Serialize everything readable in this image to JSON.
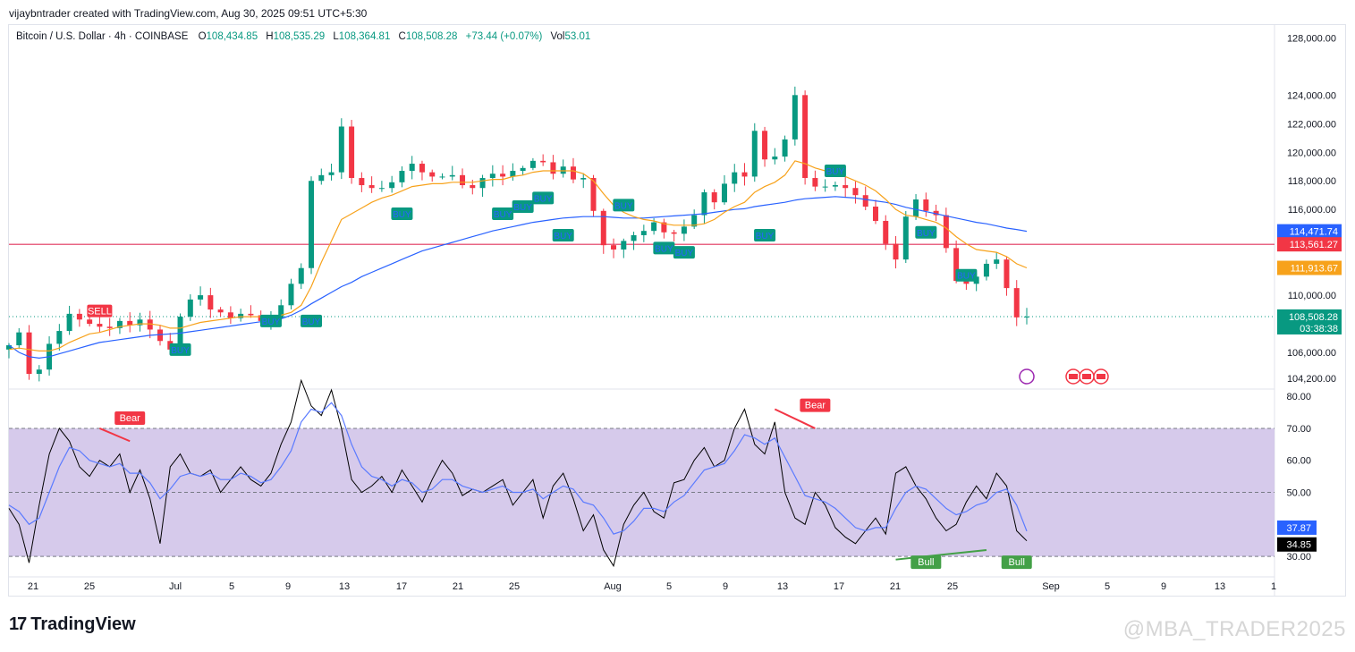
{
  "header": {
    "attribution": "vijaybntrader created with TradingView.com, Aug 30, 2025 09:51 UTC+5:30"
  },
  "legend": {
    "symbol": "Bitcoin / U.S. Dollar · 4h · COINBASE",
    "open_label": "O",
    "open": "108,434.85",
    "high_label": "H",
    "high": "108,535.29",
    "low_label": "L",
    "low": "108,364.81",
    "close_label": "C",
    "close": "108,508.28",
    "change": "+73.44 (+0.07%)",
    "vol_label": "Vol",
    "vol": "53.01"
  },
  "footer": {
    "logo_text": "TradingView",
    "watermark": "@MBA_TRADER2025"
  },
  "colors": {
    "up": "#089981",
    "down": "#f23645",
    "ma_slow": "#2962ff",
    "ma_fast": "#f7a21b",
    "hline": "#e0345c",
    "rsi_band": "#d1c4e9",
    "rsi_line": "#000000",
    "rsi_ma": "#5b7bff"
  },
  "chart_data": [
    {
      "type": "candlestick",
      "x_ticks": [
        "21",
        "25",
        "Jul",
        "5",
        "9",
        "13",
        "17",
        "21",
        "25",
        "Aug",
        "5",
        "9",
        "13",
        "17",
        "21",
        "25",
        "Sep",
        "5",
        "9",
        "13",
        "1"
      ],
      "y_ticks": [
        "128,000.00",
        "124,000.00",
        "122,000.00",
        "120,000.00",
        "118,000.00",
        "116,000.00",
        "110,000.00",
        "106,000.00",
        "104,200.00"
      ],
      "y_tick_values": [
        128000,
        124000,
        122000,
        120000,
        118000,
        116000,
        110000,
        106000,
        104200
      ],
      "ylim": [
        103500,
        128900
      ],
      "price_series": [
        106500,
        107400,
        104500,
        104800,
        106600,
        107500,
        108700,
        108300,
        108000,
        107800,
        107700,
        108200,
        107900,
        108300,
        107600,
        106800,
        106200,
        108500,
        109700,
        110000,
        109000,
        108800,
        108400,
        108700,
        108600,
        108200,
        108400,
        109300,
        110800,
        111900,
        118000,
        118400,
        118600,
        121800,
        118200,
        117700,
        117500,
        117500,
        117900,
        118700,
        119200,
        118600,
        118300,
        118300,
        118400,
        117700,
        117500,
        118200,
        118500,
        118300,
        118700,
        118900,
        119400,
        119300,
        118500,
        119000,
        118100,
        118200,
        115900,
        113500,
        113200,
        113800,
        114200,
        114500,
        115100,
        114400,
        114300,
        114800,
        115600,
        117200,
        116500,
        117800,
        118600,
        118300,
        121500,
        119500,
        119700,
        120900,
        124000,
        118200,
        117600,
        117600,
        117700,
        117500,
        117000,
        116200,
        115200,
        113600,
        112500,
        115500,
        116700,
        115900,
        115600,
        113300,
        111000,
        110800,
        111300,
        112200,
        112500,
        110500,
        108450,
        108508
      ],
      "ma_fast": [
        106200,
        106300,
        106200,
        106100,
        106100,
        106300,
        106700,
        107000,
        107300,
        107400,
        107600,
        107800,
        107900,
        108000,
        108000,
        107900,
        107700,
        107700,
        107900,
        108100,
        108200,
        108300,
        108400,
        108500,
        108500,
        108500,
        108500,
        108600,
        108800,
        109300,
        110600,
        112300,
        113800,
        115300,
        115700,
        116100,
        116500,
        116800,
        117000,
        117300,
        117600,
        117700,
        117800,
        117800,
        117900,
        117900,
        117900,
        118000,
        118100,
        118100,
        118300,
        118400,
        118600,
        118700,
        118700,
        118700,
        118700,
        118500,
        118000,
        117100,
        116300,
        115800,
        115500,
        115300,
        115200,
        115000,
        114900,
        114900,
        114900,
        115000,
        115300,
        115800,
        116200,
        116500,
        117200,
        117600,
        117900,
        118400,
        119400,
        119200,
        118900,
        118700,
        118500,
        118300,
        118000,
        117700,
        117300,
        116700,
        116000,
        115600,
        115500,
        115300,
        115100,
        114700,
        114100,
        113600,
        113200,
        113100,
        113000,
        112700,
        112200,
        111913
      ],
      "ma_slow": [
        106500,
        106000,
        105700,
        105600,
        105700,
        105900,
        106100,
        106300,
        106500,
        106700,
        106800,
        106900,
        107000,
        107100,
        107200,
        107250,
        107300,
        107350,
        107450,
        107550,
        107650,
        107750,
        107850,
        107950,
        108050,
        108150,
        108250,
        108350,
        108600,
        108950,
        109400,
        109800,
        110200,
        110600,
        110900,
        111300,
        111600,
        111900,
        112200,
        112500,
        112800,
        113100,
        113300,
        113500,
        113700,
        113900,
        114100,
        114300,
        114500,
        114650,
        114800,
        114950,
        115100,
        115200,
        115300,
        115400,
        115450,
        115500,
        115500,
        115500,
        115450,
        115400,
        115400,
        115400,
        115450,
        115500,
        115550,
        115600,
        115650,
        115700,
        115800,
        115900,
        116000,
        116050,
        116200,
        116300,
        116400,
        116500,
        116650,
        116750,
        116800,
        116850,
        116900,
        116850,
        116800,
        116700,
        116600,
        116500,
        116350,
        116150,
        116000,
        115850,
        115700,
        115550,
        115400,
        115250,
        115100,
        115000,
        114850,
        114700,
        114600,
        114472
      ],
      "horizontal_line": 113561.27,
      "price_labels": [
        {
          "text": "114,471.74",
          "color": "#2962ff",
          "value": 114471.74
        },
        {
          "text": "113,561.27",
          "color": "#f23645",
          "value": 113561.27
        },
        {
          "text": "111,913.67",
          "color": "#f7a21b",
          "value": 111913.67
        },
        {
          "text": "108,508.28",
          "sub": "03:38:38",
          "color": "#089981",
          "value": 108508.28
        }
      ],
      "signals": [
        {
          "label": "SELL",
          "kind": "sell",
          "x_index": 9,
          "y": 108900
        },
        {
          "label": "BUY",
          "kind": "buy",
          "x_index": 17,
          "y": 106200
        },
        {
          "label": "BUY",
          "kind": "buy",
          "x_index": 26,
          "y": 108200
        },
        {
          "label": "BUY",
          "kind": "buy",
          "x_index": 30,
          "y": 108200
        },
        {
          "label": "BUY",
          "kind": "buy",
          "x_index": 39,
          "y": 115700
        },
        {
          "label": "BUY",
          "kind": "buy",
          "x_index": 49,
          "y": 115700
        },
        {
          "label": "BUY",
          "kind": "buy",
          "x_index": 51,
          "y": 116200
        },
        {
          "label": "BUY",
          "kind": "buy",
          "x_index": 53,
          "y": 116800
        },
        {
          "label": "BUY",
          "kind": "buy",
          "x_index": 55,
          "y": 114200
        },
        {
          "label": "BUY",
          "kind": "buy",
          "x_index": 61,
          "y": 116300
        },
        {
          "label": "BUY",
          "kind": "buy",
          "x_index": 65,
          "y": 113300
        },
        {
          "label": "BUY",
          "kind": "buy",
          "x_index": 67,
          "y": 113000
        },
        {
          "label": "BUY",
          "kind": "buy",
          "x_index": 75,
          "y": 114200
        },
        {
          "label": "BUY",
          "kind": "buy",
          "x_index": 82,
          "y": 118700
        },
        {
          "label": "BUY",
          "kind": "buy",
          "x_index": 91,
          "y": 114400
        },
        {
          "label": "BUY",
          "kind": "buy",
          "x_index": 95,
          "y": 111400
        }
      ]
    },
    {
      "type": "line",
      "name": "RSI",
      "x_ticks": [
        "21",
        "25",
        "Jul",
        "5",
        "9",
        "13",
        "17",
        "21",
        "25",
        "Aug",
        "5",
        "9",
        "13",
        "17",
        "21",
        "25",
        "Sep",
        "5",
        "9",
        "13",
        "1"
      ],
      "y_ticks": [
        "80.00",
        "70.00",
        "60.00",
        "50.00",
        "30.00"
      ],
      "y_tick_values": [
        80,
        70,
        60,
        50,
        30
      ],
      "band": [
        30,
        70
      ],
      "midline": 50,
      "ylim": [
        25,
        82
      ],
      "rsi": [
        45,
        40,
        28,
        46,
        62,
        70,
        66,
        58,
        55,
        60,
        58,
        62,
        50,
        57,
        48,
        34,
        58,
        62,
        56,
        55,
        57,
        50,
        54,
        58,
        54,
        52,
        56,
        65,
        72,
        85,
        77,
        74,
        82,
        70,
        54,
        50,
        52,
        55,
        50,
        57,
        52,
        47,
        54,
        60,
        56,
        49,
        51,
        50,
        52,
        54,
        46,
        50,
        54,
        42,
        52,
        56,
        48,
        38,
        43,
        32,
        27,
        40,
        46,
        50,
        44,
        42,
        53,
        54,
        60,
        64,
        58,
        60,
        70,
        76,
        65,
        62,
        72,
        50,
        42,
        40,
        50,
        46,
        39,
        36,
        34,
        38,
        42,
        37,
        56,
        58,
        52,
        48,
        42,
        38,
        40,
        47,
        52,
        48,
        56,
        52,
        38,
        34.85
      ],
      "rsi_ma": [
        46,
        44,
        40,
        42,
        50,
        58,
        64,
        63,
        60,
        59,
        58,
        59,
        56,
        56,
        53,
        48,
        51,
        55,
        56,
        55,
        56,
        54,
        54,
        56,
        55,
        53,
        54,
        58,
        63,
        72,
        76,
        75,
        78,
        74,
        65,
        58,
        55,
        54,
        52,
        54,
        53,
        50,
        51,
        54,
        54,
        52,
        51,
        50,
        51,
        52,
        50,
        50,
        51,
        48,
        50,
        52,
        51,
        47,
        46,
        42,
        37,
        38,
        41,
        45,
        45,
        44,
        47,
        49,
        53,
        57,
        58,
        59,
        63,
        68,
        67,
        65,
        67,
        61,
        55,
        49,
        48,
        47,
        45,
        42,
        39,
        38,
        39,
        39,
        45,
        50,
        52,
        51,
        48,
        45,
        43,
        44,
        46,
        47,
        50,
        51,
        46,
        37.87
      ],
      "labels": [
        {
          "text": "Bear",
          "kind": "bear",
          "x_index": 12,
          "y": 70
        },
        {
          "text": "Bear",
          "kind": "bear",
          "x_index": 80,
          "y": 74
        },
        {
          "text": "Bull",
          "kind": "bull",
          "x_index": 91,
          "y": 30
        },
        {
          "text": "Bull",
          "kind": "bull",
          "x_index": 100,
          "y": 30
        }
      ],
      "value_labels": [
        {
          "text": "37.87",
          "color": "#2962ff",
          "value": 37.87
        },
        {
          "text": "34.85",
          "color": "#000000",
          "value": 34.85
        }
      ]
    }
  ]
}
